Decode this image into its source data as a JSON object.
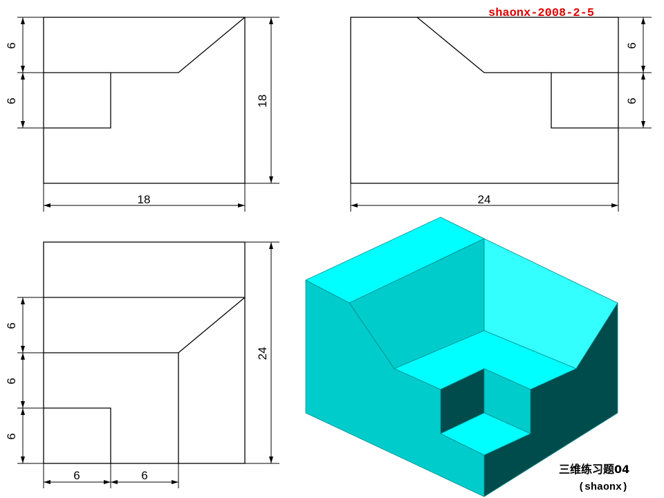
{
  "signature": "shaonx-2008-2-5",
  "caption": {
    "title": "三维练习题04",
    "author": "(shaonx)"
  },
  "colors": {
    "face_light": "#00ffff",
    "face_top": "#33ffff",
    "face_mid": "#00cccc",
    "face_dark": "#004c4c",
    "signature": "#e00000"
  },
  "front_view": {
    "dims": {
      "width": "18",
      "height": "18",
      "upper": "6",
      "lower": "6"
    }
  },
  "side_view": {
    "dims": {
      "width": "24",
      "upper": "6",
      "lower": "6"
    }
  },
  "top_view": {
    "dims": {
      "height": "24",
      "seg1": "6",
      "seg2": "6",
      "seg3": "6",
      "bottom_left": "6",
      "bottom_right": "6"
    }
  }
}
